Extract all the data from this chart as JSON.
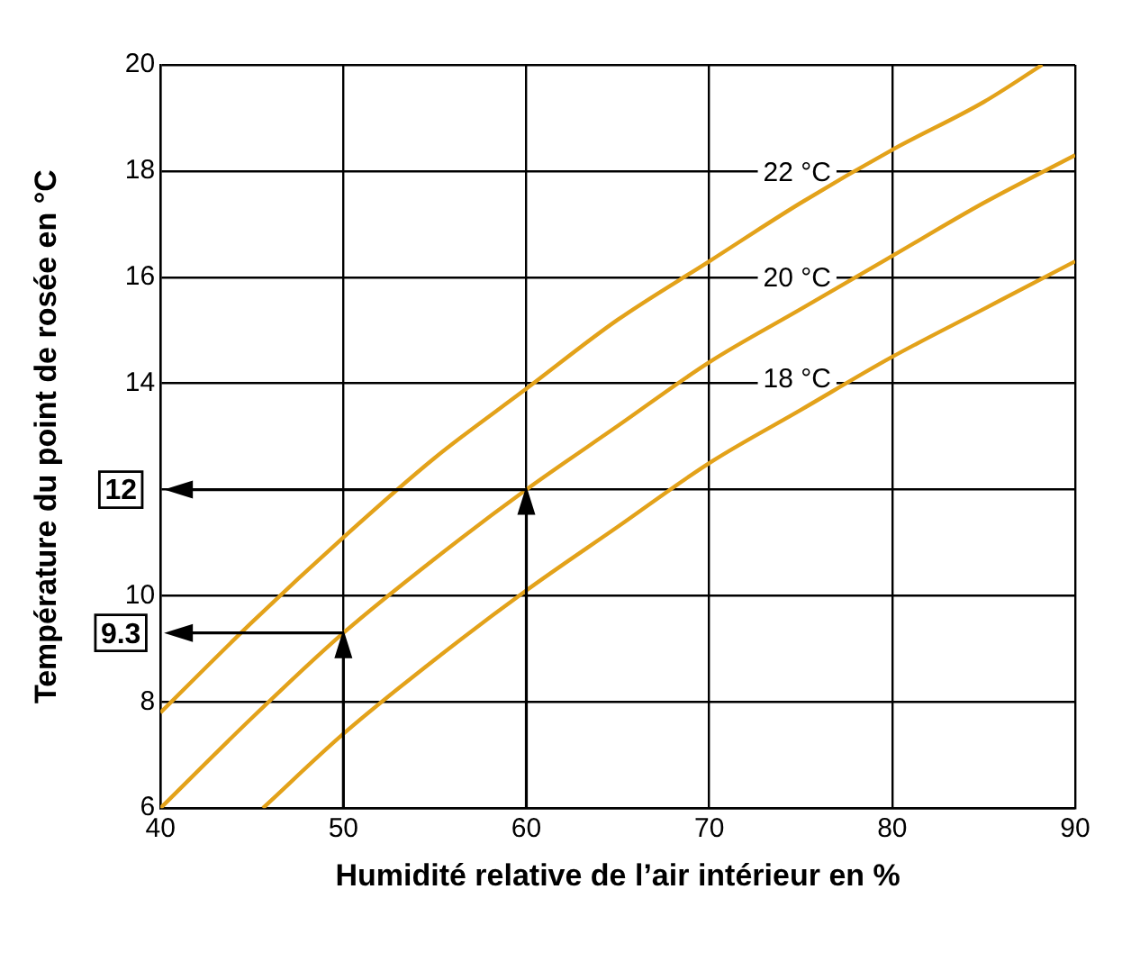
{
  "chart_data": {
    "type": "line",
    "xlabel": "Humidité relative de l’air intérieur en %",
    "ylabel": "Température du point de rosée en °C",
    "xlim": [
      40,
      90
    ],
    "xticks": [
      40,
      50,
      60,
      70,
      80,
      90
    ],
    "ylim": [
      6,
      20
    ],
    "yticks": [
      6,
      8,
      10,
      {
        "value": 12,
        "label": null
      },
      14,
      16,
      18,
      20
    ],
    "grid": true,
    "legend": false,
    "marker": "none",
    "line_style": "solid",
    "series": [
      {
        "name": "22 °C",
        "color": "#e3a21a",
        "x": [
          40,
          45,
          50,
          55,
          60,
          65,
          70,
          75,
          80,
          85,
          88.2
        ],
        "values": [
          7.8,
          9.5,
          11.1,
          12.6,
          13.9,
          15.2,
          16.3,
          17.4,
          18.4,
          19.3,
          20
        ]
      },
      {
        "name": "20 °C",
        "color": "#e3a21a",
        "x": [
          40,
          45,
          50,
          55,
          60,
          65,
          70,
          75,
          80,
          85,
          90
        ],
        "values": [
          6.0,
          7.7,
          9.3,
          10.7,
          12.0,
          13.2,
          14.4,
          15.4,
          16.4,
          17.4,
          18.3
        ]
      },
      {
        "name": "18 °C",
        "color": "#e3a21a",
        "x": [
          45.6,
          50,
          55,
          60,
          65,
          70,
          75,
          80,
          85,
          90
        ],
        "values": [
          6.0,
          7.4,
          8.8,
          10.1,
          11.3,
          12.5,
          13.5,
          14.5,
          15.4,
          16.3
        ]
      }
    ],
    "ref_lines": [
      {
        "axis": "x",
        "value": 60
      },
      {
        "axis": "y",
        "value": 12,
        "label": "12"
      },
      {
        "axis": "x",
        "value": 50
      },
      {
        "axis": "y",
        "value": 9.3,
        "label": "9.3"
      }
    ]
  }
}
